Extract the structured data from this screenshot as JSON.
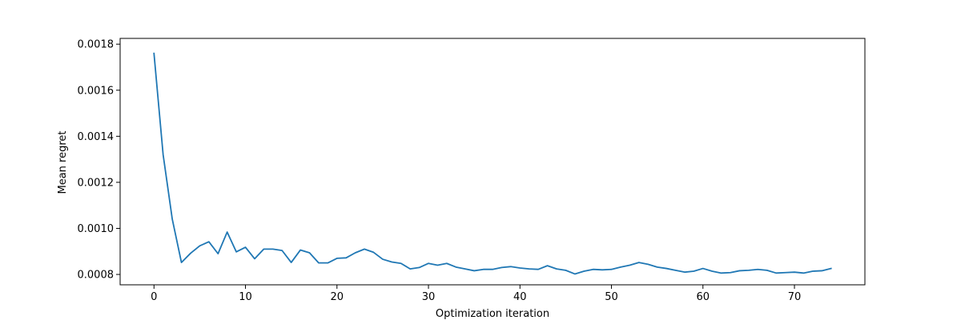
{
  "chart_data": {
    "type": "line",
    "title": "",
    "xlabel": "Optimization iteration",
    "ylabel": "Mean regret",
    "xlim": [
      -3.7,
      77.7
    ],
    "ylim": [
      0.000755,
      0.001825
    ],
    "xticks": [
      0,
      10,
      20,
      30,
      40,
      50,
      60,
      70
    ],
    "yticks": [
      0.0008,
      0.001,
      0.0012,
      0.0014,
      0.0016,
      0.0018
    ],
    "ytick_labels": [
      "0.0008",
      "0.0010",
      "0.0012",
      "0.0014",
      "0.0016",
      "0.0018"
    ],
    "grid": false,
    "color": "#1f77b4",
    "series": [
      {
        "x": [
          0,
          1,
          2,
          3,
          4,
          5,
          6,
          7,
          8,
          9,
          10,
          11,
          12,
          13,
          14,
          15,
          16,
          17,
          18,
          19,
          20,
          21,
          22,
          23,
          24,
          25,
          26,
          27,
          28,
          29,
          30,
          31,
          32,
          33,
          34,
          35,
          36,
          37,
          38,
          39,
          40,
          41,
          42,
          43,
          44,
          45,
          46,
          47,
          48,
          49,
          50,
          51,
          52,
          53,
          54,
          55,
          56,
          57,
          58,
          59,
          60,
          61,
          62,
          63,
          64,
          65,
          66,
          67,
          68,
          69,
          70,
          71,
          72,
          73,
          74
        ],
        "values": [
          0.00176,
          0.00132,
          0.00104,
          0.000852,
          0.000892,
          0.000924,
          0.000942,
          0.00089,
          0.000984,
          0.000898,
          0.000918,
          0.000868,
          0.00091,
          0.00091,
          0.000904,
          0.000852,
          0.000906,
          0.000894,
          0.00085,
          0.00085,
          0.00087,
          0.000872,
          0.000894,
          0.00091,
          0.000896,
          0.000866,
          0.000854,
          0.000848,
          0.000824,
          0.00083,
          0.000848,
          0.00084,
          0.000848,
          0.000832,
          0.000824,
          0.000816,
          0.000822,
          0.000822,
          0.00083,
          0.000834,
          0.000828,
          0.000824,
          0.000822,
          0.000838,
          0.000824,
          0.000818,
          0.000802,
          0.000814,
          0.000822,
          0.00082,
          0.000822,
          0.000832,
          0.00084,
          0.000852,
          0.000844,
          0.000832,
          0.000826,
          0.000818,
          0.00081,
          0.000814,
          0.000826,
          0.000814,
          0.000806,
          0.000808,
          0.000816,
          0.000818,
          0.000822,
          0.000818,
          0.000806,
          0.000808,
          0.00081,
          0.000806,
          0.000814,
          0.000816,
          0.000826
        ]
      }
    ]
  }
}
